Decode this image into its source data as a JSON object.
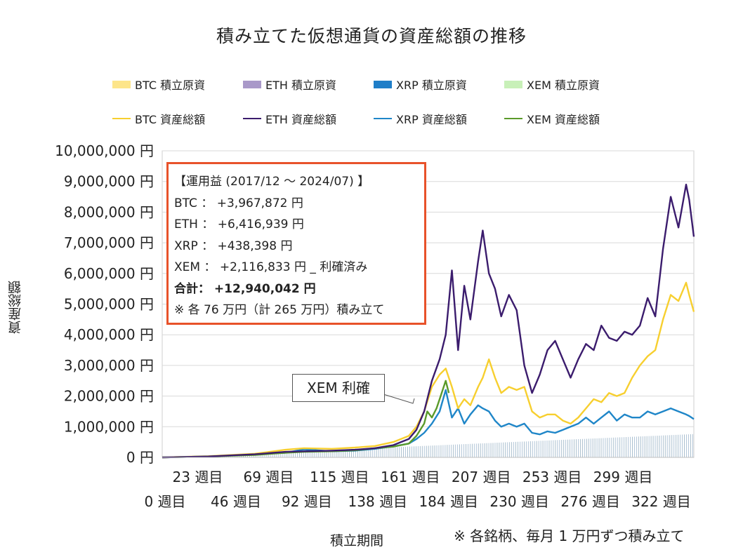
{
  "title": "積み立てた仮想通貨の資産総額の推移",
  "legend": [
    {
      "label": "BTC  積立原資",
      "color": "#fde58a",
      "kind": "box"
    },
    {
      "label": "ETH  積立原資",
      "color": "#a999c9",
      "kind": "box"
    },
    {
      "label": "XRP  積立原資",
      "color": "#1f7ec8",
      "kind": "box"
    },
    {
      "label": "XEM  積立原資",
      "color": "#c8f0b8",
      "kind": "box"
    },
    {
      "label": "BTC  資産総額",
      "color": "#f7cf2f",
      "kind": "line"
    },
    {
      "label": "ETH  資産総額",
      "color": "#3b1c6d",
      "kind": "line"
    },
    {
      "label": "XRP  資産総額",
      "color": "#1f86c8",
      "kind": "line"
    },
    {
      "label": "XEM  資産総額",
      "color": "#5a9a2a",
      "kind": "line"
    }
  ],
  "summary": {
    "heading": "【運用益 (2017/12 ～ 2024/07) 】",
    "btc": "BTC  ：  +3,967,872 円",
    "eth": "ETH  ：  +6,416,939 円",
    "xrp": "XRP  ：  +438,398 円",
    "xem": "XEM  ：  +2,116,833 円 _ 利確済み",
    "total": "合計： +12,940,042 円",
    "note": "※ 各 76 万円（計 265 万円）積み立て"
  },
  "callout": "XEM 利確",
  "ylabel": "資産総額",
  "xlabel": "積立期間",
  "footnote": "※ 各銘柄、毎月 1 万円ずつ積み立て",
  "chart_data": {
    "type": "line",
    "title": "積み立てた仮想通貨の資産総額の推移",
    "xlabel": "積立期間",
    "ylabel": "資産総額",
    "ylim": [
      0,
      10000000
    ],
    "y_ticks": [
      "0 円",
      "1,000,000 円",
      "2,000,000 円",
      "3,000,000 円",
      "4,000,000 円",
      "5,000,000 円",
      "6,000,000 円",
      "7,000,000 円",
      "8,000,000 円",
      "9,000,000 円",
      "10,000,000 円"
    ],
    "x_ticks_upper": [
      "23 週目",
      "69 週目",
      "115 週目",
      "161 週目",
      "207 週目",
      "253 週目",
      "299 週目"
    ],
    "x_ticks_lower": [
      "0 週目",
      "46 週目",
      "92 週目",
      "138 週目",
      "184 週目",
      "230 週目",
      "276 週目",
      "322 週目"
    ],
    "xlim": [
      0,
      345
    ],
    "grid": true,
    "legend_position": "top",
    "principal_bars": {
      "name": "積立原資",
      "x": [
        0,
        345
      ],
      "y": [
        0,
        760000
      ]
    },
    "series": [
      {
        "name": "BTC  資産総額",
        "color": "#f7cf2f",
        "x": [
          0,
          30,
          60,
          80,
          92,
          110,
          125,
          138,
          150,
          160,
          165,
          170,
          175,
          180,
          184,
          188,
          192,
          196,
          200,
          205,
          208,
          212,
          216,
          220,
          225,
          230,
          235,
          240,
          245,
          250,
          255,
          260,
          265,
          270,
          275,
          280,
          285,
          290,
          295,
          300,
          305,
          310,
          315,
          320,
          325,
          330,
          335,
          340,
          342,
          345
        ],
        "y": [
          0,
          40000,
          120000,
          250000,
          300000,
          280000,
          320000,
          370000,
          500000,
          700000,
          1000000,
          1500000,
          2300000,
          2700000,
          2900000,
          2300000,
          1600000,
          1900000,
          1700000,
          2300000,
          2600000,
          3200000,
          2600000,
          2100000,
          2300000,
          2200000,
          2300000,
          1500000,
          1300000,
          1400000,
          1400000,
          1200000,
          1100000,
          1300000,
          1600000,
          1900000,
          1800000,
          2100000,
          2000000,
          2100000,
          2600000,
          3000000,
          3300000,
          3500000,
          4500000,
          5300000,
          5100000,
          5700000,
          5300000,
          4750000
        ]
      },
      {
        "name": "ETH  資産総額",
        "color": "#3b1c6d",
        "x": [
          0,
          30,
          60,
          80,
          92,
          110,
          125,
          138,
          150,
          160,
          165,
          170,
          175,
          180,
          184,
          188,
          192,
          196,
          200,
          205,
          208,
          212,
          216,
          220,
          225,
          230,
          235,
          240,
          245,
          250,
          255,
          260,
          265,
          270,
          275,
          280,
          285,
          290,
          295,
          300,
          305,
          310,
          315,
          320,
          325,
          330,
          335,
          340,
          342,
          345
        ],
        "y": [
          0,
          30000,
          100000,
          180000,
          200000,
          220000,
          250000,
          300000,
          400000,
          600000,
          900000,
          1500000,
          2500000,
          3200000,
          4000000,
          6100000,
          3500000,
          5600000,
          4500000,
          6400000,
          7400000,
          6000000,
          5500000,
          4600000,
          5300000,
          4800000,
          3000000,
          2100000,
          2700000,
          3500000,
          3800000,
          3200000,
          2600000,
          3200000,
          3700000,
          3500000,
          4300000,
          3900000,
          3800000,
          4100000,
          4000000,
          4300000,
          5200000,
          4600000,
          6800000,
          8500000,
          7500000,
          8900000,
          8400000,
          7200000
        ]
      },
      {
        "name": "XRP  資産総額",
        "color": "#1f86c8",
        "x": [
          0,
          30,
          60,
          80,
          92,
          110,
          125,
          138,
          150,
          160,
          165,
          170,
          175,
          180,
          184,
          188,
          192,
          196,
          200,
          205,
          208,
          212,
          216,
          220,
          225,
          230,
          235,
          240,
          245,
          250,
          255,
          260,
          265,
          270,
          275,
          280,
          285,
          290,
          295,
          300,
          305,
          310,
          315,
          320,
          325,
          330,
          335,
          340,
          342,
          345
        ],
        "y": [
          0,
          30000,
          100000,
          150000,
          260000,
          200000,
          220000,
          280000,
          360000,
          450000,
          600000,
          800000,
          1100000,
          1500000,
          2200000,
          1300000,
          1600000,
          1100000,
          1400000,
          1700000,
          1600000,
          1500000,
          1200000,
          1000000,
          1100000,
          1000000,
          1100000,
          800000,
          750000,
          850000,
          800000,
          900000,
          1000000,
          1100000,
          1300000,
          1100000,
          1300000,
          1500000,
          1200000,
          1400000,
          1300000,
          1300000,
          1500000,
          1400000,
          1500000,
          1600000,
          1500000,
          1400000,
          1350000,
          1250000
        ]
      },
      {
        "name": "XEM  資産総額",
        "color": "#5a9a2a",
        "x": [
          0,
          30,
          60,
          80,
          92,
          110,
          125,
          138,
          150,
          155,
          160,
          165,
          170,
          172,
          175,
          178,
          180,
          184,
          186
        ],
        "y": [
          0,
          30000,
          80000,
          150000,
          180000,
          200000,
          230000,
          300000,
          350000,
          400000,
          450000,
          700000,
          1100000,
          1500000,
          1300000,
          1600000,
          1900000,
          2500000,
          2100000
        ]
      }
    ]
  }
}
